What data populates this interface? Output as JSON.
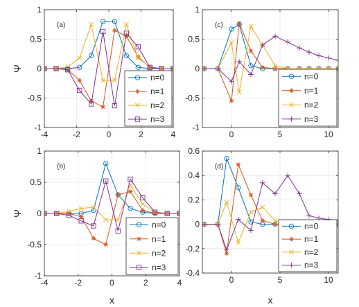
{
  "colors": {
    "n0": "#0072BD",
    "n1": "#D95319",
    "n2": "#EDB120",
    "n3": "#7E2F8E",
    "grid": "#e6e6e6",
    "axis": "#262626"
  },
  "chart_data": [
    {
      "id": "a",
      "type": "line",
      "annotation": "(a)",
      "xlim": [
        -4,
        4
      ],
      "ylim": [
        -1,
        1
      ],
      "xticks": [
        -4,
        -2,
        0,
        2,
        4
      ],
      "yticks": [
        -1,
        -0.5,
        0,
        0.5,
        1
      ],
      "xtick_labels": [
        "-4",
        "-2",
        "0",
        "2",
        "4"
      ],
      "ytick_labels": [
        "-1",
        "-0.5",
        "0",
        "0.5",
        "1"
      ],
      "ylabel": "Ψ",
      "xlabel": "",
      "grid": true,
      "legend_position": "bottom-right",
      "x": [
        -4,
        -3.27,
        -2.55,
        -1.82,
        -1.09,
        -0.36,
        0.36,
        1.09,
        1.82,
        2.55,
        3.27,
        4
      ],
      "series": [
        {
          "name": "n=0",
          "marker": "o",
          "values": [
            0,
            0,
            0,
            0.02,
            0.22,
            0.8,
            0.8,
            0.22,
            0.02,
            0,
            0,
            0
          ]
        },
        {
          "name": "n=1",
          "marker": "*",
          "values": [
            0,
            0,
            -0.02,
            -0.2,
            -0.55,
            -0.65,
            0.65,
            0.55,
            0.2,
            0.02,
            0,
            0
          ]
        },
        {
          "name": "n=2",
          "marker": "x",
          "values": [
            0,
            0,
            0.03,
            0.18,
            0.75,
            -0.2,
            -0.2,
            0.75,
            0.18,
            0.03,
            0,
            0
          ]
        },
        {
          "name": "n=3",
          "marker": "s",
          "values": [
            0,
            0,
            -0.02,
            -0.37,
            -0.6,
            0.63,
            -0.63,
            0.6,
            0.37,
            0.02,
            0,
            0
          ]
        }
      ]
    },
    {
      "id": "c",
      "type": "line",
      "annotation": "(c)",
      "xlim": [
        -3,
        11
      ],
      "ylim": [
        -1,
        1
      ],
      "xticks": [
        0,
        5,
        10
      ],
      "yticks": [
        -1,
        -0.5,
        0,
        0.5,
        1
      ],
      "xtick_labels": [
        "0",
        "5",
        "10"
      ],
      "ytick_labels": [
        "-1",
        "-0.5",
        "0",
        "0.5",
        "1"
      ],
      "ylabel": "",
      "xlabel": "",
      "grid": true,
      "legend_position": "bottom-right",
      "x": [
        -2.8,
        -1.4,
        0,
        0.8,
        2,
        3.2,
        4.5,
        5.8,
        7,
        8,
        9,
        10,
        11
      ],
      "series": [
        {
          "name": "n=0",
          "marker": "o",
          "values": [
            0,
            0,
            0.67,
            0.75,
            0.05,
            0,
            0,
            0,
            0,
            0,
            0,
            0,
            0
          ]
        },
        {
          "name": "n=1",
          "marker": "*",
          "values": [
            0,
            0,
            -0.55,
            0.77,
            0.3,
            0.02,
            0,
            0,
            0,
            0,
            0,
            0,
            0
          ]
        },
        {
          "name": "n=2",
          "marker": "x",
          "values": [
            0,
            0,
            0.44,
            -0.4,
            0.72,
            0.4,
            0.05,
            0,
            0,
            0,
            0,
            0,
            0
          ]
        },
        {
          "name": "n=3",
          "marker": "+",
          "values": [
            0,
            0,
            -0.22,
            0.12,
            -0.1,
            0.4,
            0.55,
            0.45,
            0.35,
            0.28,
            0.22,
            0.18,
            0.14
          ]
        }
      ]
    },
    {
      "id": "b",
      "type": "line",
      "annotation": "(b)",
      "xlim": [
        -4,
        4
      ],
      "ylim": [
        -1,
        1
      ],
      "xticks": [
        -4,
        -2,
        0,
        2,
        4
      ],
      "yticks": [
        -1,
        -0.5,
        0,
        0.5,
        1
      ],
      "xtick_labels": [
        "-4",
        "-2",
        "0",
        "2",
        "4"
      ],
      "ytick_labels": [
        "-1",
        "-0.5",
        "0",
        "0.5",
        "1"
      ],
      "ylabel": "Ψ",
      "xlabel": "x",
      "grid": true,
      "legend_position": "bottom-right",
      "x": [
        -4,
        -3.27,
        -2.55,
        -1.82,
        -1.09,
        -0.36,
        0.36,
        1.09,
        1.82,
        2.55,
        3.27,
        4
      ],
      "series": [
        {
          "name": "n=0",
          "marker": "o",
          "values": [
            0,
            0,
            0,
            0,
            0.05,
            0.8,
            0.3,
            0.08,
            0.02,
            0,
            0,
            0
          ]
        },
        {
          "name": "n=1",
          "marker": "*",
          "values": [
            0,
            0,
            0,
            -0.05,
            -0.4,
            -0.5,
            0.3,
            0.35,
            0.05,
            0,
            0,
            0
          ]
        },
        {
          "name": "n=2",
          "marker": "x",
          "values": [
            0,
            0,
            0.03,
            0.08,
            0.1,
            -0.1,
            -0.1,
            0.45,
            0.15,
            0.02,
            0,
            0
          ]
        },
        {
          "name": "n=3",
          "marker": "s",
          "values": [
            0,
            0,
            -0.03,
            -0.12,
            -0.2,
            0.52,
            -0.28,
            0.55,
            0.25,
            0.02,
            0,
            0
          ]
        }
      ]
    },
    {
      "id": "d",
      "type": "line",
      "annotation": "(d)",
      "xlim": [
        -3,
        11
      ],
      "ylim": [
        -0.4,
        0.6
      ],
      "xticks": [
        0,
        5,
        10
      ],
      "yticks": [
        -0.4,
        -0.2,
        0,
        0.2,
        0.4,
        0.6
      ],
      "xtick_labels": [
        "0",
        "5",
        "10"
      ],
      "ytick_labels": [
        "-0.4",
        "-0.2",
        "0",
        "0.2",
        "0.4",
        "0.6"
      ],
      "ylabel": "",
      "xlabel": "x",
      "grid": true,
      "legend_position": "bottom-right",
      "x": [
        -2.8,
        -1.4,
        -0.5,
        0.7,
        2,
        3.2,
        4.5,
        5.8,
        7,
        8,
        9,
        10,
        11
      ],
      "series": [
        {
          "name": "n=0",
          "marker": "o",
          "values": [
            0,
            0,
            0.54,
            0.3,
            0.02,
            0,
            0,
            0,
            0,
            0,
            0,
            0,
            0
          ]
        },
        {
          "name": "n=1",
          "marker": "*",
          "values": [
            0,
            0,
            -0.24,
            0.49,
            0.24,
            0.03,
            0,
            0,
            0,
            0,
            0,
            0,
            0
          ]
        },
        {
          "name": "n=2",
          "marker": "x",
          "values": [
            0,
            0,
            0.18,
            -0.15,
            0.1,
            0.14,
            0.03,
            0,
            0,
            0,
            0,
            0,
            0
          ]
        },
        {
          "name": "n=3",
          "marker": "+",
          "values": [
            0,
            0,
            -0.21,
            0.04,
            -0.05,
            0.34,
            0.25,
            0.4,
            0.25,
            0.07,
            0.05,
            0.04,
            0.03
          ]
        }
      ]
    }
  ]
}
